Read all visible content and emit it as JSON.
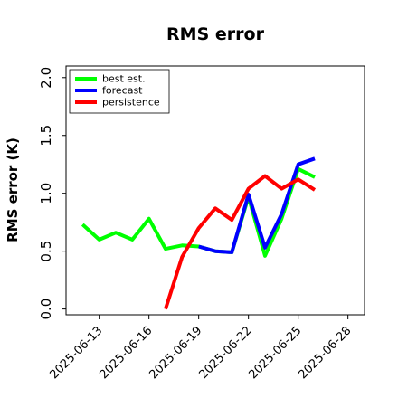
{
  "chart_data": {
    "type": "line",
    "title": "RMS error",
    "xlabel": "",
    "ylabel": "RMS error (K)",
    "ylim": [
      -0.05,
      2.1
    ],
    "xlim": [
      "2025-06-11",
      "2025-06-29"
    ],
    "x_ticks": [
      "2025-06-13",
      "2025-06-16",
      "2025-06-19",
      "2025-06-22",
      "2025-06-25",
      "2025-06-28"
    ],
    "x_tick_colors": [
      "#000000",
      "#000000",
      "#2e8b2e",
      "#000000",
      "#000000",
      "#000000"
    ],
    "y_ticks": [
      "0.0",
      "0.5",
      "1.0",
      "1.5",
      "2.0"
    ],
    "legend_position": "upper left",
    "grid": false,
    "series": [
      {
        "name": "best est.",
        "color": "#00ff00",
        "x": [
          "2025-06-12",
          "2025-06-13",
          "2025-06-14",
          "2025-06-15",
          "2025-06-16",
          "2025-06-17",
          "2025-06-18",
          "2025-06-19",
          "2025-06-20",
          "2025-06-21",
          "2025-06-22",
          "2025-06-23",
          "2025-06-24",
          "2025-06-25",
          "2025-06-26"
        ],
        "values": [
          0.73,
          0.6,
          0.66,
          0.6,
          0.78,
          0.52,
          0.55,
          0.54,
          0.5,
          0.49,
          0.97,
          0.46,
          0.78,
          1.21,
          1.14
        ]
      },
      {
        "name": "forecast",
        "color": "#0000ff",
        "x": [
          "2025-06-19",
          "2025-06-20",
          "2025-06-21",
          "2025-06-22",
          "2025-06-23",
          "2025-06-24",
          "2025-06-25",
          "2025-06-26"
        ],
        "values": [
          0.54,
          0.5,
          0.49,
          0.99,
          0.53,
          0.82,
          1.25,
          1.3
        ]
      },
      {
        "name": "persistence",
        "color": "#ff0000",
        "x": [
          "2025-06-17",
          "2025-06-18",
          "2025-06-19",
          "2025-06-20",
          "2025-06-21",
          "2025-06-22",
          "2025-06-23",
          "2025-06-24",
          "2025-06-25",
          "2025-06-26"
        ],
        "values": [
          0.0,
          0.45,
          0.7,
          0.87,
          0.77,
          1.04,
          1.15,
          1.04,
          1.12,
          1.03
        ]
      }
    ]
  }
}
